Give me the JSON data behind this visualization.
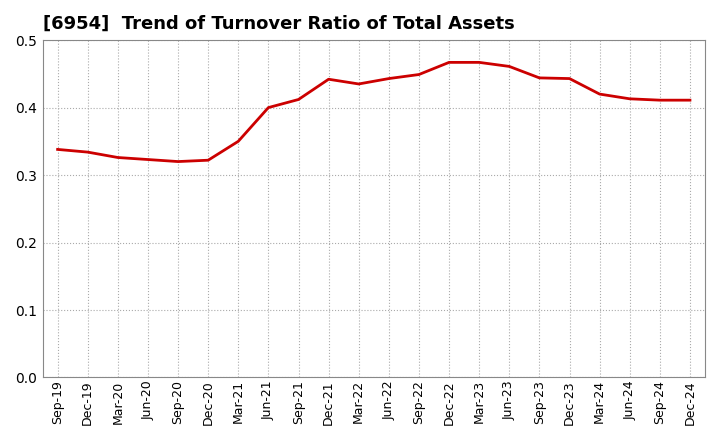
{
  "title": "[6954]  Trend of Turnover Ratio of Total Assets",
  "line_color": "#cc0000",
  "line_width": 2.0,
  "background_color": "#ffffff",
  "plot_bg_color": "#ffffff",
  "grid_color": "#aaaaaa",
  "ylim": [
    0.0,
    0.5
  ],
  "yticks": [
    0.0,
    0.1,
    0.2,
    0.3,
    0.4,
    0.5
  ],
  "values": [
    0.338,
    0.334,
    0.326,
    0.323,
    0.32,
    0.322,
    0.35,
    0.4,
    0.412,
    0.442,
    0.435,
    0.443,
    0.449,
    0.467,
    0.467,
    0.461,
    0.444,
    0.443,
    0.42,
    0.413,
    0.411,
    0.411
  ],
  "xtick_labels": [
    "Sep-19",
    "Dec-19",
    "Mar-20",
    "Jun-20",
    "Sep-20",
    "Dec-20",
    "Mar-21",
    "Jun-21",
    "Sep-21",
    "Dec-21",
    "Mar-22",
    "Jun-22",
    "Sep-22",
    "Dec-22",
    "Mar-23",
    "Jun-23",
    "Sep-23",
    "Dec-23",
    "Mar-24",
    "Jun-24",
    "Sep-24",
    "Dec-24"
  ],
  "title_fontsize": 13,
  "tick_fontsize": 9,
  "ytick_fontsize": 10
}
